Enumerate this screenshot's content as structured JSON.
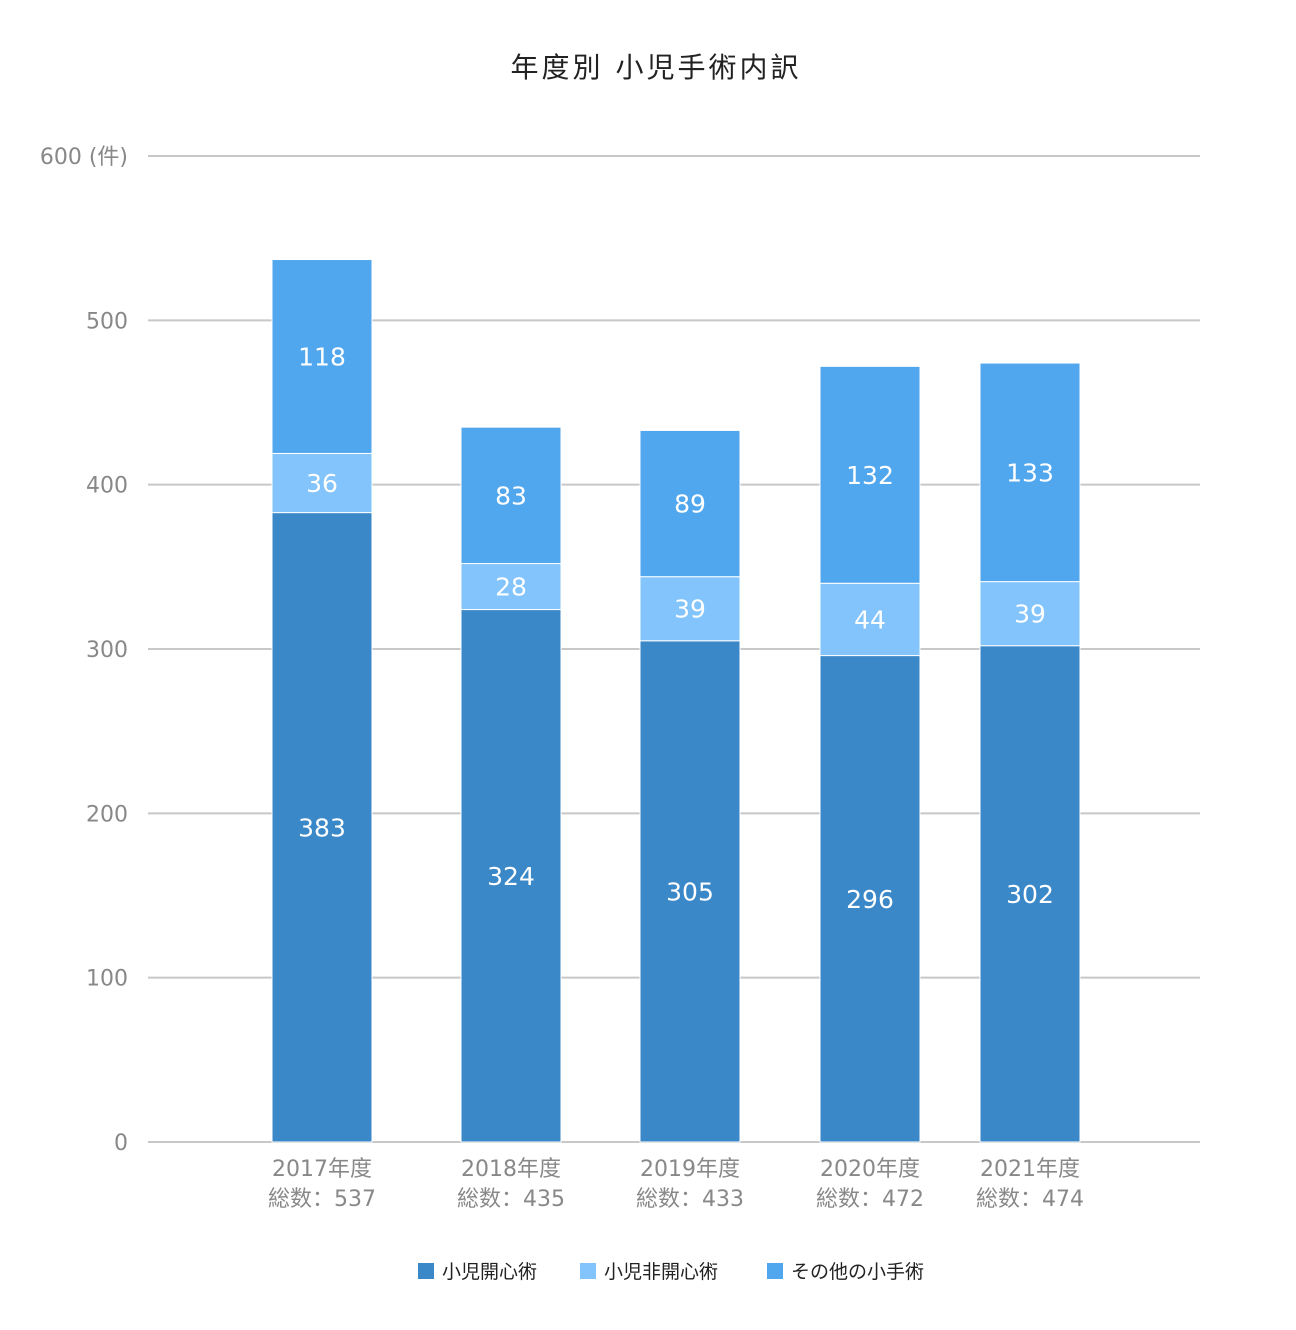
{
  "chart_data": {
    "type": "bar",
    "stacked": true,
    "title": "年度別 小児手術内訳",
    "y_unit_label": "(件)",
    "ylim": [
      0,
      600
    ],
    "yticks": [
      0,
      100,
      200,
      300,
      400,
      500,
      600
    ],
    "categories": [
      "2017年度",
      "2018年度",
      "2019年度",
      "2020年度",
      "2021年度"
    ],
    "totals_labels": [
      "総数：537",
      "総数：435",
      "総数：433",
      "総数：472",
      "総数：474"
    ],
    "series": [
      {
        "name": "小児開心術",
        "color": "#3b88c8",
        "values": [
          383,
          324,
          305,
          296,
          302
        ]
      },
      {
        "name": "小児非開心術",
        "color": "#82c4fb",
        "values": [
          36,
          28,
          39,
          44,
          39
        ]
      },
      {
        "name": "その他の小手術",
        "color": "#51a7ee",
        "values": [
          118,
          83,
          89,
          132,
          133
        ]
      }
    ],
    "grid": true,
    "gridline_color": "#c8c8c8",
    "legend_position": "bottom"
  }
}
